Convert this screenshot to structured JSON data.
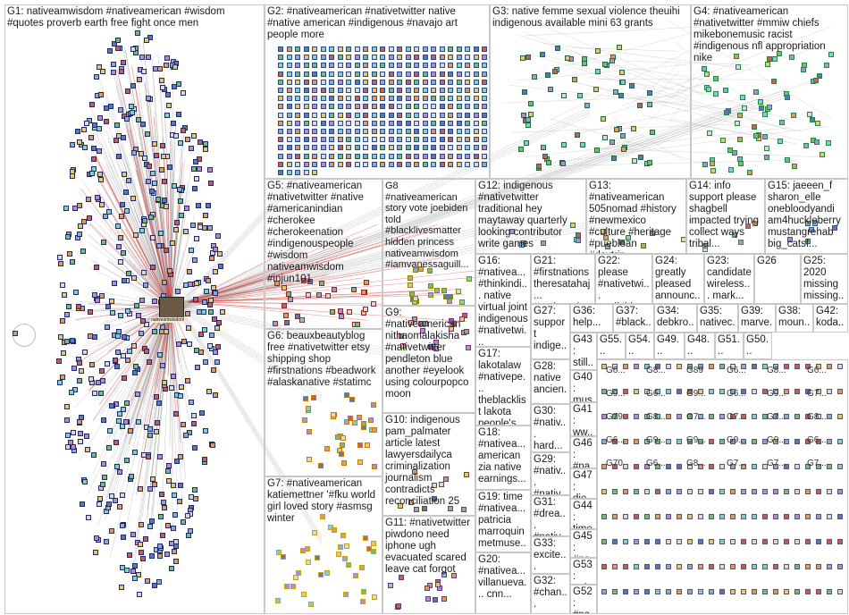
{
  "graph": {
    "groups": [
      {
        "id": "g1",
        "label": "G1: nativeamwisdom #nativeamerican #wisdom #quotes proverb earth free fight once men",
        "color": "#26337a"
      },
      {
        "id": "g2",
        "label": "G2: #nativeamerican #nativetwitter native #native american #indigenous #navajo art people more",
        "color": "#2b5f8a"
      },
      {
        "id": "g3",
        "label": "G3: native femme sexual violence theuihi indigenous available mini 63 grants",
        "color": "#1e6b3b"
      },
      {
        "id": "g4",
        "label": "G4: #nativeamerican #nativetwitter #mmiw chiefs mikebonemusic racist #indigenous nfl appropriation nike",
        "color": "#1f8a3a"
      },
      {
        "id": "g5",
        "label": "G5: #nativeamerican #nativetwitter #native #americanindian #cherokee #cherokeenation #indigenouspeople #wisdom nativeamwisdom #injun101",
        "color": "#8a2b2b"
      },
      {
        "id": "g6",
        "label": "G6: beauxbeautyblog free #nativetwitter etsy shipping shop #firstnations #beadwork #alaskanative #statimc",
        "color": "#c77b00"
      },
      {
        "id": "g7",
        "label": "G7: #nativeamerican katiemettner '#fku world girl loved story #asmsg winter",
        "color": "#c7a400"
      },
      {
        "id": "g8",
        "label": "G8 #nativeamerican story vote joebiden told #blacklivesmatter hidden princess nativeamwisdom #iamvanessaguill...",
        "color": "#8a8a00"
      },
      {
        "id": "g9",
        "label": "G9: #nativeamerican nithaomalakisha #nativetwitter pendleton blue another #eyelook using colourpopco moon",
        "color": "#8a2b6b"
      },
      {
        "id": "g10",
        "label": "G10: indigenous pam_palmater article latest lawyersdailyca criminalization journalism contradicts reconciliation 25",
        "color": "#6b4a2b"
      },
      {
        "id": "g11",
        "label": "G11: #nativetwitter piwdono need iphone ugh evacuated scared leave cat forgot",
        "color": "#5a3a8a"
      },
      {
        "id": "g12",
        "label": "G12: indigenous #nativetwitter traditional hey maytaway quarterly looking contributor write games",
        "color": "#2b6b6b"
      },
      {
        "id": "g13",
        "label": "G13: #nativeamerican 505nomad #history #newmexico #culture #heritage #puebloan #daytrip...",
        "color": "#4a6b2b"
      },
      {
        "id": "g14",
        "label": "G14: info support please shagbell impacted trying collect ways tribal...",
        "color": "#6b6b6b"
      },
      {
        "id": "g15",
        "label": "G15: jaeeen_f sharon_elle onebloodyandi am4huckleberry mustangrehab big_catsf...",
        "color": "#3a5a8a"
      },
      {
        "id": "g16",
        "label": "G16: #nativea... #thinkindi... native virtual joint indigenous #nativetwi...",
        "color": "#6b3a3a"
      },
      {
        "id": "g17",
        "label": "G17: lakotalaw #nativepe... theblacklist lakota people's...",
        "color": "#3a6b3a"
      },
      {
        "id": "g18",
        "label": "G18: #nativea... american zia native earnings...",
        "color": "#6b3a6b"
      },
      {
        "id": "g19",
        "label": "G19: time #nativea... patricia marroquin metmuse...",
        "color": "#3a3a6b"
      },
      {
        "id": "g20",
        "label": "G20: #nativea... villanueva... cnn...",
        "color": "#6b6b3a"
      },
      {
        "id": "g21",
        "label": "G21: #firstnations theresatahaj... #nativetwi... #nativeame...",
        "color": "#3a6b6b"
      },
      {
        "id": "g22",
        "label": "G22: please #nativetwi... available...",
        "color": "#5a5a5a"
      },
      {
        "id": "g23",
        "label": "G23: candidate wireless... mark...",
        "color": "#5a5a5a"
      },
      {
        "id": "g24",
        "label": "G24: greatly pleased announc...",
        "color": "#5a5a5a"
      },
      {
        "id": "g25",
        "label": "G25: 2020 missing missing...",
        "color": "#5a5a5a"
      },
      {
        "id": "g26",
        "label": "G26",
        "color": "#5a5a5a"
      },
      {
        "id": "g27",
        "label": "G27: support indige... please...",
        "color": "#5a5a5a"
      },
      {
        "id": "g28",
        "label": "G28: native ancien...",
        "color": "#5a5a5a"
      },
      {
        "id": "g29",
        "label": "G29: #nativ... #nativ...",
        "color": "#5a5a5a"
      },
      {
        "id": "g30",
        "label": "G30: #nativ... hard...",
        "color": "#5a5a5a"
      },
      {
        "id": "g31",
        "label": "G31: #drea... #nativ...",
        "color": "#5a5a5a"
      },
      {
        "id": "g32",
        "label": "G32: #chan...",
        "color": "#5a5a5a"
      },
      {
        "id": "g33",
        "label": "G33: excite...",
        "color": "#5a5a5a"
      },
      {
        "id": "g34",
        "label": "G34: debkro...",
        "color": "#5a5a5a"
      },
      {
        "id": "g35",
        "label": "G35: nativec...",
        "color": "#5a5a5a"
      },
      {
        "id": "g36",
        "label": "G36: help...",
        "color": "#5a5a5a"
      },
      {
        "id": "g37",
        "label": "G37: #black...",
        "color": "#5a5a5a"
      },
      {
        "id": "g38",
        "label": "G38: moun...",
        "color": "#5a5a5a"
      },
      {
        "id": "g39",
        "label": "G39: marve...",
        "color": "#5a5a5a"
      },
      {
        "id": "g40",
        "label": "G40: mus...",
        "color": "#5a5a5a"
      },
      {
        "id": "g41",
        "label": "G41: ww...",
        "color": "#5a5a5a"
      },
      {
        "id": "g42",
        "label": "G42: koda...",
        "color": "#5a5a5a"
      },
      {
        "id": "g43",
        "label": "G43: still...",
        "color": "#5a5a5a"
      },
      {
        "id": "g44",
        "label": "G44: time...",
        "color": "#5a5a5a"
      },
      {
        "id": "g45",
        "label": "G45: #na...",
        "color": "#5a5a5a"
      },
      {
        "id": "g46",
        "label": "G46: #na...",
        "color": "#5a5a5a"
      },
      {
        "id": "g47",
        "label": "G47: die...",
        "color": "#5a5a5a"
      },
      {
        "id": "g48",
        "label": "G48...",
        "color": "#5a5a5a"
      },
      {
        "id": "g49",
        "label": "G49...",
        "color": "#5a5a5a"
      },
      {
        "id": "g50",
        "label": "G50...",
        "color": "#5a5a5a"
      },
      {
        "id": "g51",
        "label": "G51...",
        "color": "#5a5a5a"
      },
      {
        "id": "g52",
        "label": "G52: #na...",
        "color": "#5a5a5a"
      },
      {
        "id": "g53",
        "label": "G53: noh...",
        "color": "#5a5a5a"
      },
      {
        "id": "g54",
        "label": "G54...",
        "color": "#5a5a5a"
      },
      {
        "id": "g55",
        "label": "G55...",
        "color": "#5a5a5a"
      }
    ],
    "small_labels": [
      "G6...",
      "G8...",
      "G89",
      "G6...",
      "G8...",
      "G6...",
      "G9...",
      "G6...",
      "G9...",
      "G6...",
      "G9...",
      "G7...",
      "G79",
      "G8...",
      "G7...",
      "G7...",
      "G7...",
      "G8...",
      "G6...",
      "G9...",
      "G9...",
      "G9...",
      "G9...",
      "G6...",
      "G70",
      "G6...",
      "G8...",
      "G7...",
      "G7...",
      "G7..."
    ],
    "hub_tag": "nativeamwisdom"
  }
}
